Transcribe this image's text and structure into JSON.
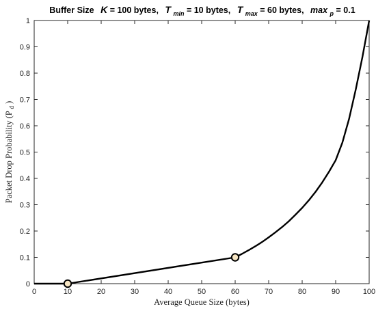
{
  "chart_data": {
    "type": "line",
    "title": {
      "lead": "Buffer Size",
      "K_sym": "K",
      "K_val": " = 100 bytes,",
      "Tmin_sym": "T",
      "Tmin_sub": "min",
      "Tmin_val": " = 10 bytes,",
      "Tmax_sym": "T",
      "Tmax_sub": "max",
      "Tmax_val": " = 60 bytes,",
      "maxp_sym": "max",
      "maxp_sub": "p",
      "maxp_val": " = 0.1"
    },
    "xlabel": "Average Queue Size (bytes)",
    "ylabel": {
      "main": "Packet Drop Probability (P",
      "sub": "d",
      "close": ")"
    },
    "xlim": [
      0,
      100
    ],
    "ylim": [
      0,
      1
    ],
    "xticks": [
      "0",
      "10",
      "20",
      "30",
      "40",
      "50",
      "60",
      "70",
      "80",
      "90",
      "100"
    ],
    "yticks": [
      "0",
      "0.1",
      "0.2",
      "0.3",
      "0.4",
      "0.5",
      "0.6",
      "0.7",
      "0.8",
      "0.9",
      "1"
    ],
    "grid": false,
    "line_color": "#000000",
    "marker_fill": "#f7e6c4",
    "series": [
      {
        "x": [
          0,
          10,
          60,
          62,
          64,
          66,
          68,
          70,
          72,
          74,
          76,
          78,
          80,
          82,
          84,
          86,
          88,
          90,
          92,
          94,
          96,
          98,
          100
        ],
        "y": [
          0,
          0,
          0.1,
          0.113,
          0.127,
          0.142,
          0.158,
          0.176,
          0.195,
          0.215,
          0.237,
          0.262,
          0.288,
          0.317,
          0.349,
          0.385,
          0.425,
          0.469,
          0.536,
          0.626,
          0.738,
          0.862,
          1.0
        ]
      }
    ],
    "markers": [
      {
        "x": 10,
        "y": 0
      },
      {
        "x": 60,
        "y": 0.1
      }
    ]
  }
}
